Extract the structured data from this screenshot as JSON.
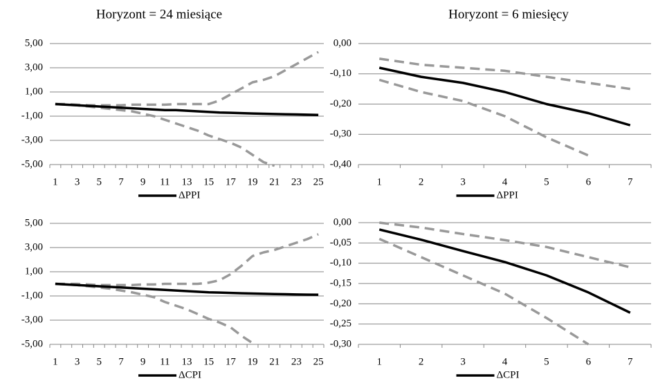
{
  "chart_data": [
    {
      "type": "line",
      "title": "Horyzont = 24 miesiące",
      "categories": [
        1,
        null,
        3,
        null,
        5,
        null,
        7,
        null,
        9,
        null,
        11,
        null,
        13,
        null,
        15,
        null,
        17,
        null,
        19,
        null,
        21,
        null,
        23,
        null,
        25
      ],
      "ylim": [
        -5,
        5
      ],
      "yticks": [
        {
          "value": -5,
          "label": "-5,00"
        },
        {
          "value": -3,
          "label": "-3,00"
        },
        {
          "value": -1,
          "label": "-1,00"
        },
        {
          "value": 1,
          "label": "1,00"
        },
        {
          "value": 3,
          "label": "3,00"
        },
        {
          "value": 5,
          "label": "5,00"
        }
      ],
      "grid": true,
      "legend": "bottom",
      "series": [
        {
          "color": "#999999",
          "dash": true,
          "values": [
            0,
            0,
            -0.05,
            -0.1,
            -0.1,
            -0.1,
            -0.1,
            -0.05,
            -0.05,
            -0.05,
            -0.05,
            0,
            0,
            0,
            0,
            0.3,
            0.8,
            1.3,
            1.8,
            2.0,
            2.3,
            2.8,
            3.3,
            3.8,
            4.3
          ]
        },
        {
          "color": "#999999",
          "dash": true,
          "values": [
            0,
            -0.05,
            -0.1,
            -0.2,
            -0.3,
            -0.4,
            -0.5,
            -0.6,
            -0.8,
            -1.0,
            -1.3,
            -1.6,
            -1.9,
            -2.2,
            -2.6,
            -2.9,
            -3.2,
            -3.6,
            -4.2,
            -4.8,
            -5.1,
            null,
            null,
            null,
            null
          ]
        },
        {
          "name": "ΔPPI",
          "color": "#000000",
          "values": [
            0,
            -0.05,
            -0.1,
            -0.15,
            -0.2,
            -0.25,
            -0.3,
            -0.35,
            -0.4,
            -0.45,
            -0.5,
            -0.5,
            -0.55,
            -0.6,
            -0.65,
            -0.7,
            -0.72,
            -0.75,
            -0.78,
            -0.8,
            -0.82,
            -0.84,
            -0.86,
            -0.88,
            -0.9
          ]
        }
      ]
    },
    {
      "type": "line",
      "title": "Horyzont = 6 miesięcy",
      "categories": [
        1,
        2,
        3,
        4,
        5,
        6,
        7
      ],
      "ylim": [
        -0.4,
        0
      ],
      "yticks": [
        {
          "value": -0.4,
          "label": "-0,40"
        },
        {
          "value": -0.3,
          "label": "-0,30"
        },
        {
          "value": -0.2,
          "label": "-0,20"
        },
        {
          "value": -0.1,
          "label": "-0,10"
        },
        {
          "value": 0,
          "label": "0,00"
        }
      ],
      "grid": true,
      "legend": "bottom",
      "series": [
        {
          "color": "#999999",
          "dash": true,
          "values": [
            -0.05,
            -0.07,
            -0.08,
            -0.09,
            -0.11,
            -0.13,
            -0.15
          ]
        },
        {
          "color": "#999999",
          "dash": true,
          "values": [
            -0.12,
            -0.16,
            -0.19,
            -0.24,
            -0.31,
            -0.37,
            null
          ]
        },
        {
          "name": "ΔPPI",
          "color": "#000000",
          "values": [
            -0.08,
            -0.11,
            -0.13,
            -0.16,
            -0.2,
            -0.23,
            -0.27
          ]
        }
      ]
    },
    {
      "type": "line",
      "categories": [
        1,
        null,
        3,
        null,
        5,
        null,
        7,
        null,
        9,
        null,
        11,
        null,
        13,
        null,
        15,
        null,
        17,
        null,
        19,
        null,
        21,
        null,
        23,
        null,
        25
      ],
      "ylim": [
        -5,
        5
      ],
      "yticks": [
        {
          "value": -5,
          "label": "-5,00"
        },
        {
          "value": -3,
          "label": "-3,00"
        },
        {
          "value": -1,
          "label": "-1,00"
        },
        {
          "value": 1,
          "label": "1,00"
        },
        {
          "value": 3,
          "label": "3,00"
        },
        {
          "value": 5,
          "label": "5,00"
        }
      ],
      "grid": true,
      "legend": "bottom",
      "series": [
        {
          "color": "#999999",
          "dash": true,
          "values": [
            0,
            0,
            0,
            -0.05,
            -0.1,
            -0.1,
            -0.1,
            -0.1,
            -0.05,
            -0.05,
            0,
            0,
            0,
            0,
            0.1,
            0.3,
            0.8,
            1.5,
            2.3,
            2.6,
            2.8,
            3.1,
            3.4,
            3.7,
            4.1
          ]
        },
        {
          "color": "#999999",
          "dash": true,
          "values": [
            0,
            -0.05,
            -0.1,
            -0.2,
            -0.3,
            -0.4,
            -0.55,
            -0.7,
            -0.9,
            -1.1,
            -1.5,
            -1.8,
            -2.1,
            -2.5,
            -2.9,
            -3.2,
            -3.6,
            -4.3,
            -4.9,
            null,
            null,
            null,
            null,
            null,
            null
          ]
        },
        {
          "name": "ΔCPI",
          "color": "#000000",
          "values": [
            0,
            -0.05,
            -0.1,
            -0.15,
            -0.2,
            -0.25,
            -0.3,
            -0.35,
            -0.4,
            -0.45,
            -0.5,
            -0.55,
            -0.6,
            -0.65,
            -0.7,
            -0.72,
            -0.75,
            -0.78,
            -0.8,
            -0.82,
            -0.84,
            -0.86,
            -0.88,
            -0.89,
            -0.9
          ]
        }
      ]
    },
    {
      "type": "line",
      "categories": [
        1,
        2,
        3,
        4,
        5,
        6,
        7
      ],
      "ylim": [
        -0.3,
        0
      ],
      "yticks": [
        {
          "value": -0.3,
          "label": "-0,30"
        },
        {
          "value": -0.25,
          "label": "-0,25"
        },
        {
          "value": -0.2,
          "label": "-0,20"
        },
        {
          "value": -0.15,
          "label": "-0,15"
        },
        {
          "value": -0.1,
          "label": "-0,10"
        },
        {
          "value": -0.05,
          "label": "-0,05"
        },
        {
          "value": 0,
          "label": "0,00"
        }
      ],
      "grid": true,
      "legend": "bottom",
      "series": [
        {
          "color": "#999999",
          "dash": true,
          "values": [
            0,
            -0.012,
            -0.028,
            -0.043,
            -0.06,
            -0.085,
            -0.11
          ]
        },
        {
          "color": "#999999",
          "dash": true,
          "values": [
            -0.04,
            -0.085,
            -0.13,
            -0.175,
            -0.235,
            -0.3,
            null
          ]
        },
        {
          "name": "ΔCPI",
          "color": "#000000",
          "values": [
            -0.017,
            -0.042,
            -0.07,
            -0.097,
            -0.13,
            -0.172,
            -0.222
          ]
        }
      ]
    }
  ]
}
